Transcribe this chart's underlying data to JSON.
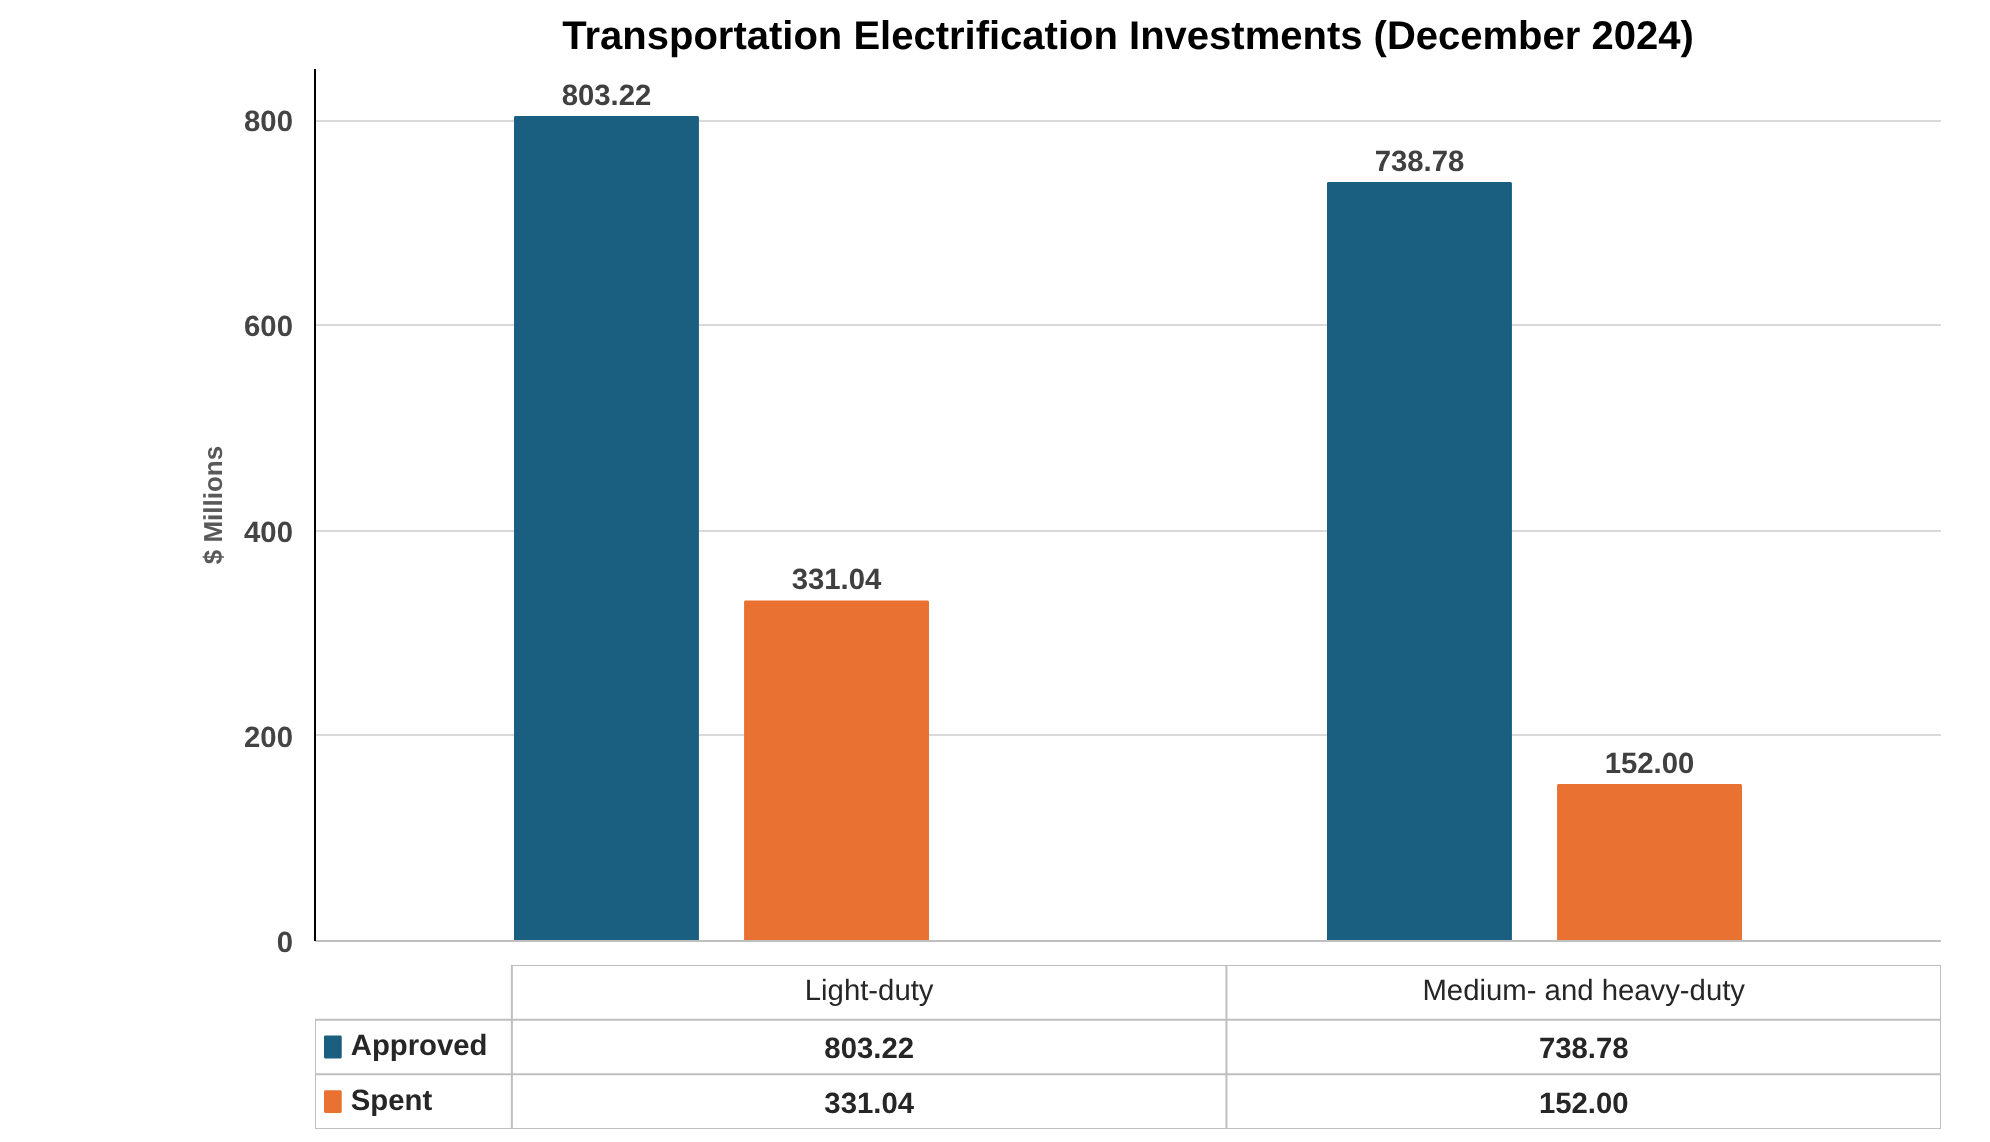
{
  "chart_data": {
    "type": "bar",
    "title": "Transportation Electrification Investments (December 2024)",
    "ylabel": "$ Millions",
    "categories": [
      "Light-duty",
      "Medium- and heavy-duty"
    ],
    "series": [
      {
        "name": "Approved",
        "color": "#1a5e80",
        "values": [
          803.22,
          738.78
        ],
        "value_labels": [
          "803.22",
          "738.78"
        ]
      },
      {
        "name": "Spent",
        "color": "#e97132",
        "values": [
          331.04,
          152.0
        ],
        "value_labels": [
          "331.04",
          "152.00"
        ]
      }
    ],
    "ylim": [
      0,
      850
    ],
    "yticks": [
      0,
      200,
      400,
      600,
      800
    ],
    "grid": "y",
    "legend": "bottom"
  }
}
